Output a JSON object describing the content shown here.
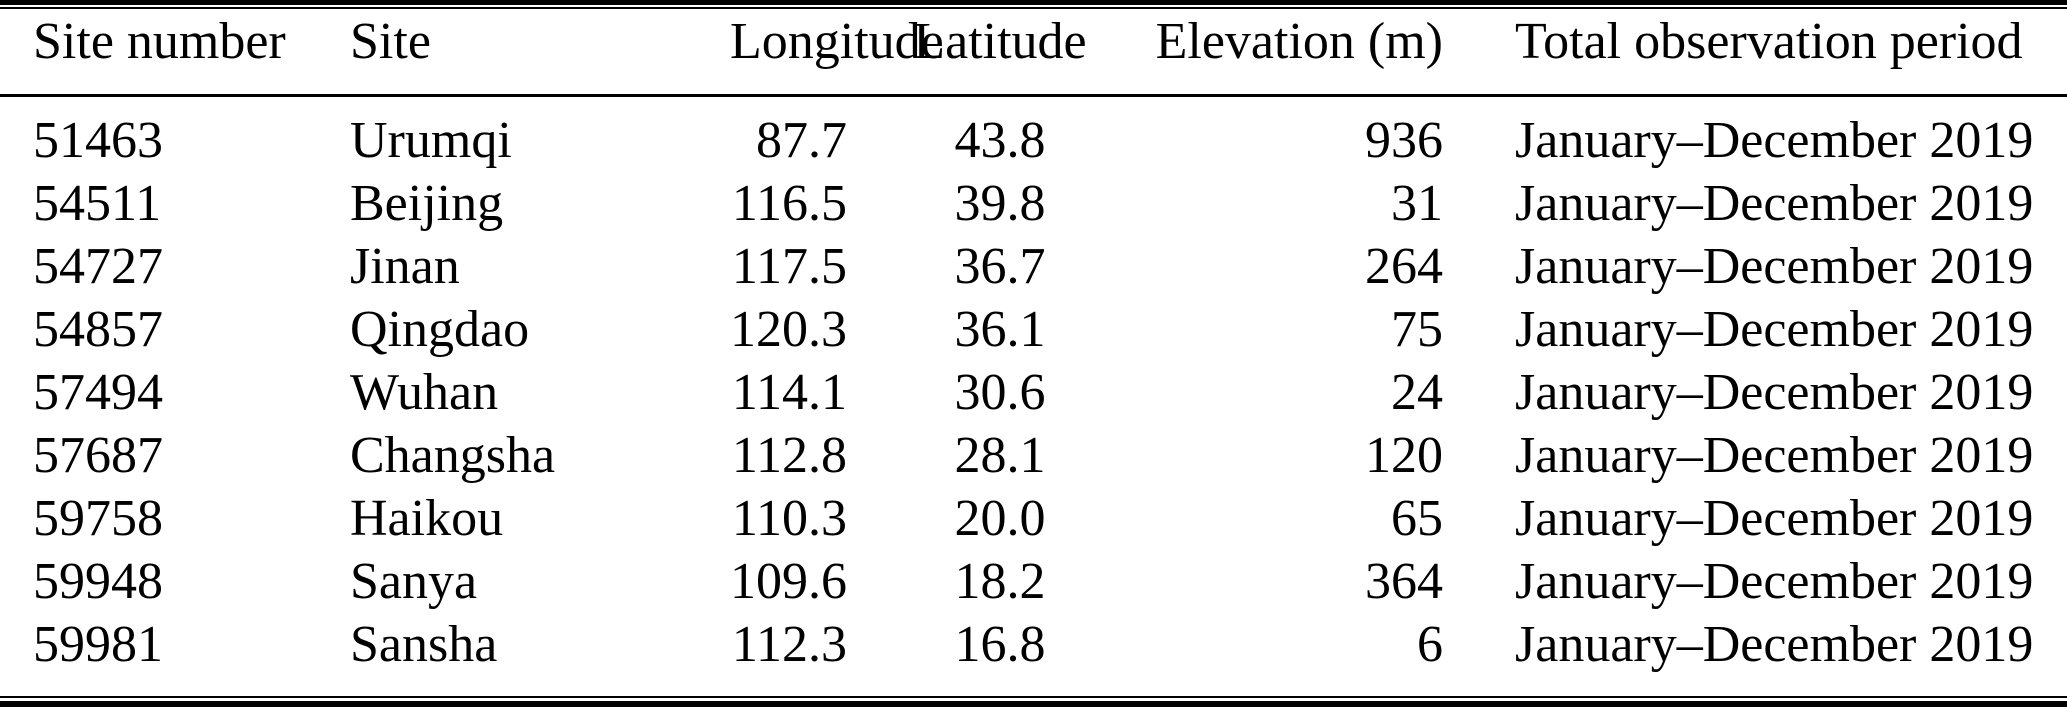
{
  "colors": {
    "background": "#ffffff",
    "text": "#000000",
    "rule": "#000000"
  },
  "table": {
    "columns": [
      {
        "key": "site_number",
        "label": "Site number",
        "align": "left"
      },
      {
        "key": "site",
        "label": "Site",
        "align": "left"
      },
      {
        "key": "longitude",
        "label": "Longitude",
        "align": "right"
      },
      {
        "key": "latitude",
        "label": "Latitude",
        "align": "center"
      },
      {
        "key": "elevation_m",
        "label": "Elevation (m)",
        "align": "right"
      },
      {
        "key": "total_observation_period",
        "label": "Total observation period",
        "align": "left"
      }
    ],
    "rows": [
      [
        "51463",
        "Urumqi",
        "87.7",
        "43.8",
        "936",
        "January–December 2019"
      ],
      [
        "54511",
        "Beijing",
        "116.5",
        "39.8",
        "31",
        "January–December 2019"
      ],
      [
        "54727",
        "Jinan",
        "117.5",
        "36.7",
        "264",
        "January–December 2019"
      ],
      [
        "54857",
        "Qingdao",
        "120.3",
        "36.1",
        "75",
        "January–December 2019"
      ],
      [
        "57494",
        "Wuhan",
        "114.1",
        "30.6",
        "24",
        "January–December 2019"
      ],
      [
        "57687",
        "Changsha",
        "112.8",
        "28.1",
        "120",
        "January–December 2019"
      ],
      [
        "59758",
        "Haikou",
        "110.3",
        "20.0",
        "65",
        "January–December 2019"
      ],
      [
        "59948",
        "Sanya",
        "109.6",
        "18.2",
        "364",
        "January–December 2019"
      ],
      [
        "59981",
        "Sansha",
        "112.3",
        "16.8",
        "6",
        "January–December 2019"
      ]
    ]
  }
}
